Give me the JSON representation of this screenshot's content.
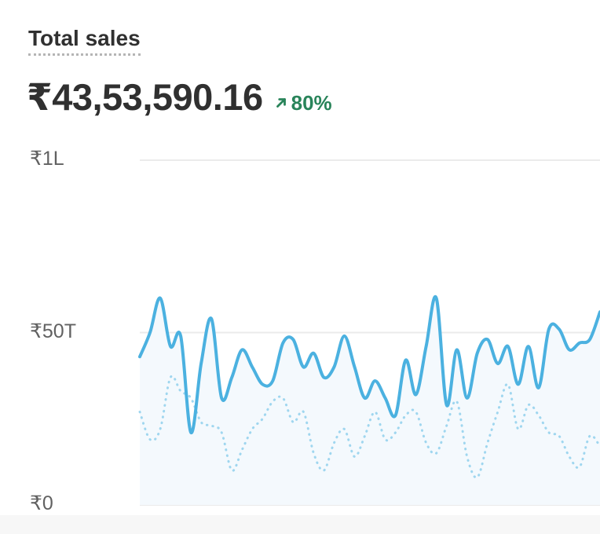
{
  "card": {
    "title": "Total sales",
    "total": "₹43,53,590.16",
    "change": "80%",
    "change_direction": "up",
    "accent_color": "#29845a"
  },
  "chart_data": {
    "type": "line",
    "y_ticks": [
      "₹1L",
      "₹50T",
      "₹0"
    ],
    "ylim": [
      0,
      100000
    ],
    "grid": true,
    "series": [
      {
        "color": "#4bb1e0",
        "style": "solid",
        "values": [
          43000,
          50000,
          60000,
          46000,
          49000,
          21000,
          41000,
          54000,
          31000,
          37000,
          45000,
          40000,
          35000,
          36000,
          47000,
          48000,
          40000,
          44000,
          37000,
          40000,
          49000,
          40000,
          31000,
          36000,
          31000,
          26000,
          42000,
          32000,
          46000,
          60000,
          29000,
          45000,
          31000,
          44000,
          48000,
          41000,
          46000,
          35000,
          46000,
          34000,
          51000,
          51000,
          45000,
          47000,
          48000,
          56000
        ]
      },
      {
        "color": "#9fd6ef",
        "style": "dotted",
        "values": [
          27000,
          19000,
          22000,
          37000,
          33000,
          31000,
          24000,
          23000,
          21000,
          10000,
          16000,
          22000,
          25000,
          30000,
          31000,
          24000,
          27000,
          15000,
          10000,
          18000,
          22000,
          14000,
          20000,
          27000,
          19000,
          21000,
          26000,
          27000,
          18000,
          15000,
          23000,
          30000,
          14000,
          8000,
          18000,
          27000,
          35000,
          22000,
          29000,
          26000,
          21000,
          20000,
          14000,
          11000,
          20000,
          17000
        ]
      }
    ]
  }
}
